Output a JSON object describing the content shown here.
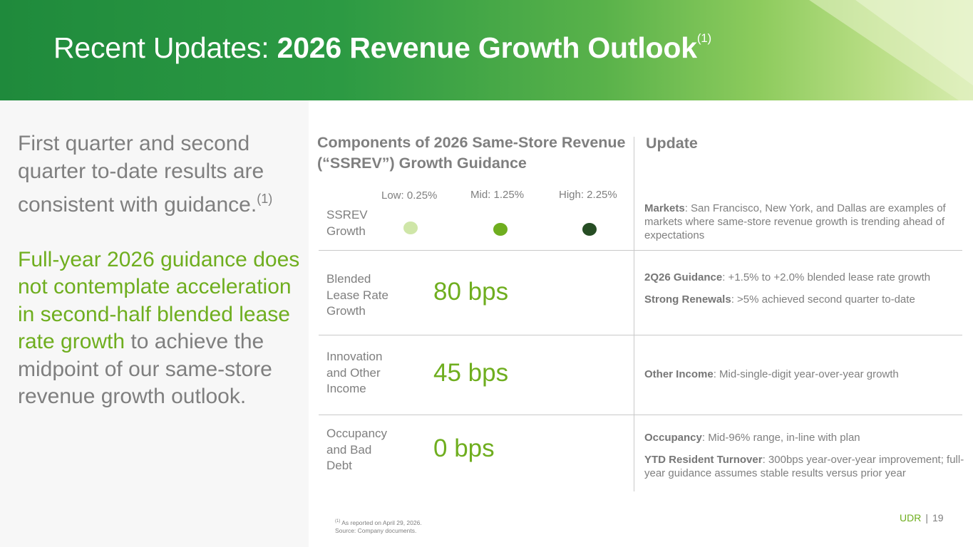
{
  "header": {
    "title_prefix": "Recent Updates: ",
    "title_bold": "2026 Revenue Growth Outlook",
    "title_note": "(1)"
  },
  "left": {
    "p1": "First quarter and second quarter to-date results are consistent with guidance.",
    "p1_note": "(1)",
    "p2_green": "Full-year 2026 guidance does not contemplate acceleration in second-half blended lease rate growth",
    "p2_rest": " to achieve the midpoint of our same-store revenue growth outlook."
  },
  "table": {
    "components_header": "Components of 2026 Same-Store Revenue (“SSREV”) Growth Guidance",
    "update_header": "Update",
    "ssrev": {
      "label": "SSREV Growth",
      "low": "Low: 0.25%",
      "mid": "Mid: 1.25%",
      "high": "High: 2.25%",
      "colors": {
        "low": "#cfe6a8",
        "mid": "#6fae1f",
        "high": "#264d24"
      },
      "update_bold": "Markets",
      "update_text": ": San Francisco, New York, and Dallas are examples of markets where same-store revenue growth is trending ahead of expectations"
    },
    "blended": {
      "label": "Blended Lease Rate Growth",
      "value": "80 bps",
      "update1_bold": "2Q26 Guidance",
      "update1_text": ": +1.5% to +2.0% blended lease rate growth",
      "update2_bold": "Strong Renewals",
      "update2_text": ": >5% achieved second quarter to-date"
    },
    "innovation": {
      "label": "Innovation and Other Income",
      "value": "45 bps",
      "update_bold": "Other Income",
      "update_text": ": Mid-single-digit year-over-year growth"
    },
    "occupancy": {
      "label": "Occupancy and Bad Debt",
      "value": "0 bps",
      "update1_bold": "Occupancy",
      "update1_text": ": Mid-96% range, in-line with plan",
      "update2_bold": "YTD Resident Turnover",
      "update2_text": ": 300bps year-over-year improvement; full-year guidance assumes stable results versus prior year"
    }
  },
  "footer": {
    "footnote_mark": "(1)",
    "footnote_text": " As reported on April 29, 2026.",
    "source": "Source: Company documents.",
    "brand": "UDR",
    "separator": "|",
    "page": "19"
  },
  "colors": {
    "accent_green": "#6fae1f",
    "header_green": "#1f8a3c",
    "text_gray": "#7f7f7f"
  }
}
